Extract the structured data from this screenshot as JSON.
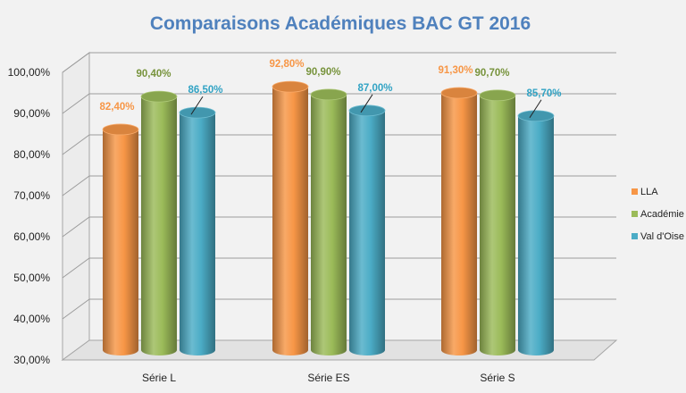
{
  "chart_data": {
    "type": "bar",
    "title": "Comparaisons Académiques BAC GT 2016",
    "xlabel": "",
    "ylabel": "",
    "categories": [
      "Série L",
      "Série ES",
      "Série S"
    ],
    "series": [
      {
        "name": "LLA",
        "values": [
          82.4,
          92.8,
          91.3
        ],
        "labels": [
          "82,40%",
          "92,80%",
          "91,30%"
        ],
        "color": "#f79646"
      },
      {
        "name": "Académie",
        "values": [
          90.4,
          90.9,
          90.7
        ],
        "labels": [
          "90,40%",
          "90,90%",
          "90,70%"
        ],
        "color": "#9bbb59"
      },
      {
        "name": "Val d'Oise",
        "values": [
          86.5,
          87.0,
          85.7
        ],
        "labels": [
          "86,50%",
          "87,00%",
          "85,70%"
        ],
        "color": "#4bacc6"
      }
    ],
    "ylim": [
      30,
      100
    ],
    "yticks": [
      30,
      40,
      50,
      60,
      70,
      80,
      90,
      100
    ],
    "ytick_labels": [
      "30,00%",
      "40,00%",
      "50,00%",
      "60,00%",
      "70,00%",
      "80,00%",
      "90,00%",
      "100,00%"
    ],
    "grid": true,
    "legend_position": "right",
    "label_colors": {
      "LLA": "#f79646",
      "Académie": "#77933c",
      "Val d'Oise": "#31a3c4"
    }
  }
}
